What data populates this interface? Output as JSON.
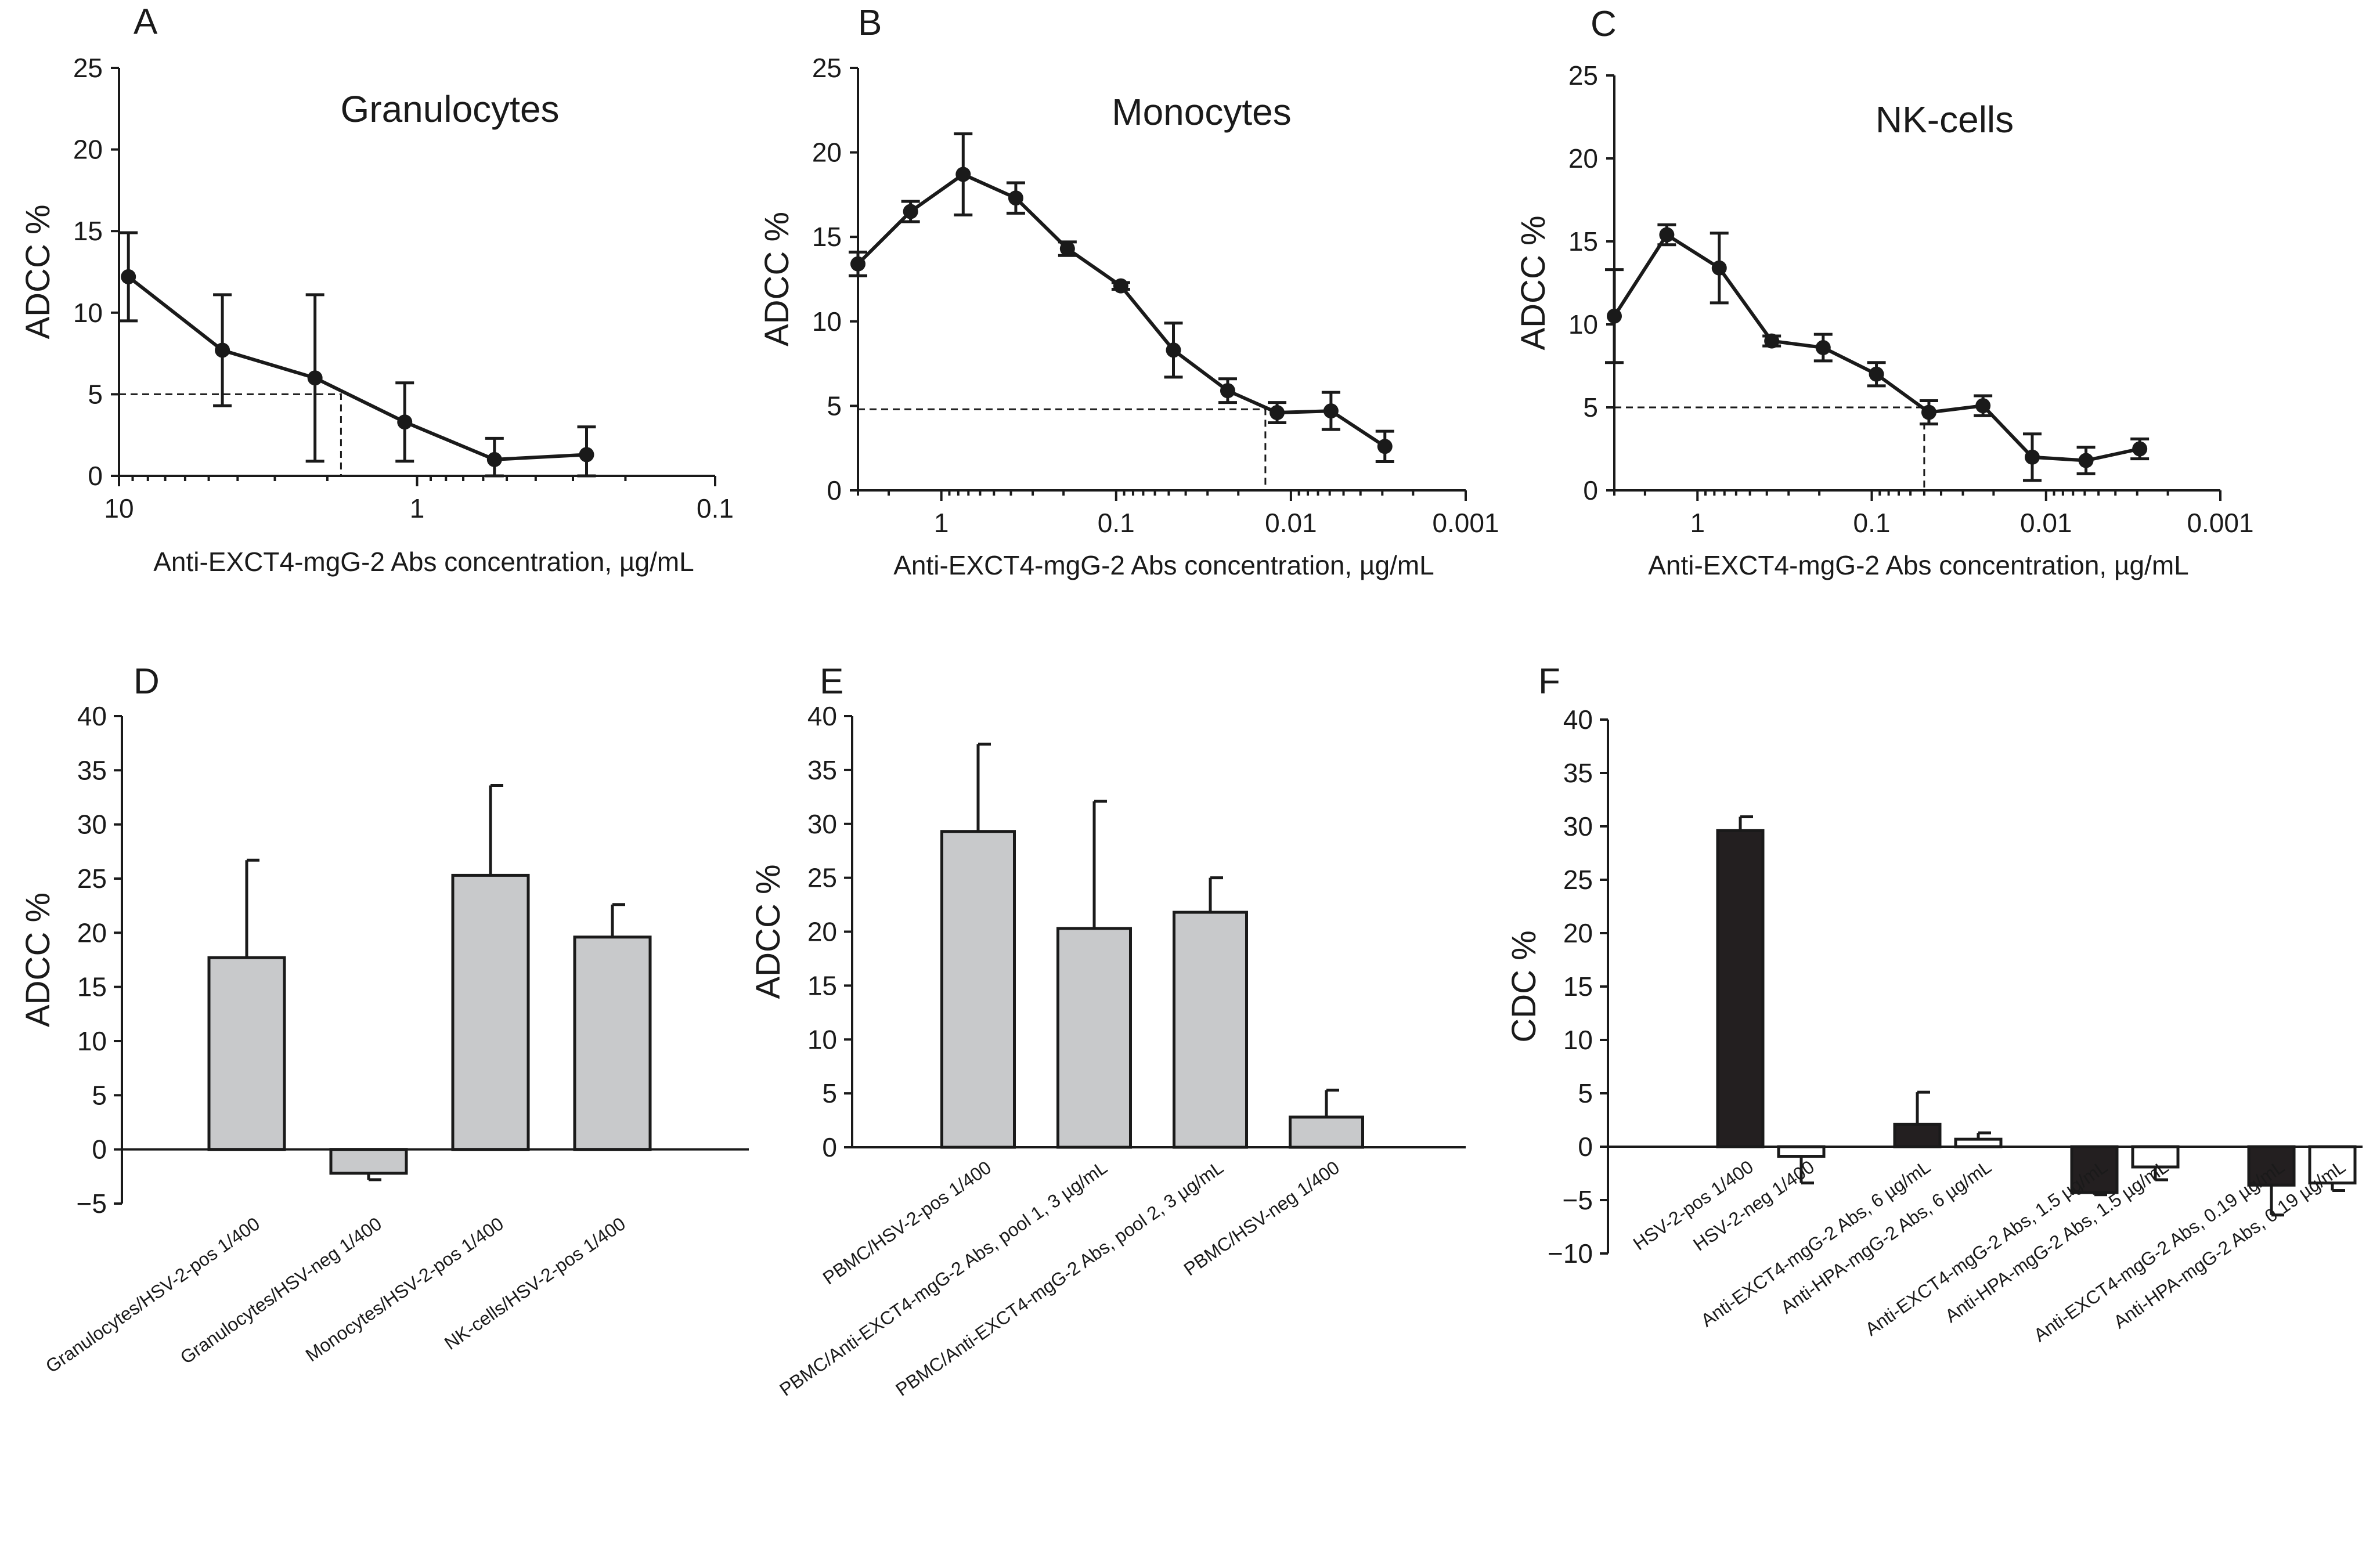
{
  "chart_data": [
    {
      "id": "A",
      "panel_label": "A",
      "type": "line",
      "title": "Granulocytes",
      "ylabel": "ADCC %",
      "xlabel": "Anti-EXCT4-mgG-2 Abs concentration, µg/mL",
      "xscale": "log-reversed",
      "xlim": [
        10,
        0.1
      ],
      "ylim": [
        0,
        25
      ],
      "xticks": [
        10,
        1,
        0.1
      ],
      "xtick_labels": [
        "10",
        "1",
        "0.1"
      ],
      "yticks": [
        0,
        5,
        10,
        15,
        20,
        25
      ],
      "ytick_labels": [
        "0",
        "5",
        "10",
        "15",
        "20",
        "25"
      ],
      "points": [
        {
          "x": 9.3,
          "y": 12.2,
          "err": 2.7
        },
        {
          "x": 4.5,
          "y": 7.7,
          "err": 3.4
        },
        {
          "x": 2.2,
          "y": 6.0,
          "err": 5.1
        },
        {
          "x": 1.1,
          "y": 3.3,
          "err": 2.4
        },
        {
          "x": 0.55,
          "y": 1.0,
          "err": 1.3
        },
        {
          "x": 0.27,
          "y": 1.3,
          "err": 1.7
        }
      ],
      "reference": {
        "y": 5,
        "x": 1.8
      }
    },
    {
      "id": "B",
      "panel_label": "B",
      "type": "line",
      "title": "Monocytes",
      "ylabel": "ADCC %",
      "xlabel": "Anti-EXCT4-mgG-2 Abs concentration, µg/mL",
      "xscale": "log-reversed",
      "xlim": [
        3,
        0.001
      ],
      "ylim": [
        0,
        25
      ],
      "xticks": [
        1,
        0.1,
        0.01,
        0.001
      ],
      "xtick_labels": [
        "1",
        "0.1",
        "0.01",
        "0.001"
      ],
      "yticks": [
        0,
        5,
        10,
        15,
        20,
        25
      ],
      "ytick_labels": [
        "0",
        "5",
        "10",
        "15",
        "20",
        "25"
      ],
      "points": [
        {
          "x": 3.0,
          "y": 13.4,
          "err": 0.7
        },
        {
          "x": 1.5,
          "y": 16.5,
          "err": 0.6
        },
        {
          "x": 0.75,
          "y": 18.7,
          "err": 2.4
        },
        {
          "x": 0.375,
          "y": 17.3,
          "err": 0.9
        },
        {
          "x": 0.19,
          "y": 14.3,
          "err": 0.4
        },
        {
          "x": 0.094,
          "y": 12.1,
          "err": 0.2
        },
        {
          "x": 0.047,
          "y": 8.3,
          "err": 1.6
        },
        {
          "x": 0.023,
          "y": 5.9,
          "err": 0.7
        },
        {
          "x": 0.012,
          "y": 4.6,
          "err": 0.6
        },
        {
          "x": 0.0059,
          "y": 4.7,
          "err": 1.1
        },
        {
          "x": 0.0029,
          "y": 2.6,
          "err": 0.9
        }
      ],
      "reference": {
        "y": 4.8,
        "x": 0.014
      }
    },
    {
      "id": "C",
      "panel_label": "C",
      "type": "line",
      "title": "NK-cells",
      "ylabel": "ADCC %",
      "xlabel": "Anti-EXCT4-mgG-2 Abs concentration, µg/mL",
      "xscale": "log-reversed",
      "xlim": [
        3,
        0.001
      ],
      "ylim": [
        0,
        25
      ],
      "xticks": [
        1,
        0.1,
        0.01,
        0.001
      ],
      "xtick_labels": [
        "1",
        "0.1",
        "0.01",
        "0.001"
      ],
      "yticks": [
        0,
        5,
        10,
        15,
        20,
        25
      ],
      "ytick_labels": [
        "0",
        "5",
        "10",
        "15",
        "20",
        "25"
      ],
      "points": [
        {
          "x": 3.0,
          "y": 10.5,
          "err": 2.8
        },
        {
          "x": 1.5,
          "y": 15.4,
          "err": 0.6
        },
        {
          "x": 0.75,
          "y": 13.4,
          "err": 2.1
        },
        {
          "x": 0.375,
          "y": 9.0,
          "err": 0.3
        },
        {
          "x": 0.19,
          "y": 8.6,
          "err": 0.8
        },
        {
          "x": 0.094,
          "y": 7.0,
          "err": 0.7
        },
        {
          "x": 0.047,
          "y": 4.7,
          "err": 0.7
        },
        {
          "x": 0.023,
          "y": 5.1,
          "err": 0.6
        },
        {
          "x": 0.012,
          "y": 2.0,
          "err": 1.4
        },
        {
          "x": 0.0059,
          "y": 1.8,
          "err": 0.8
        },
        {
          "x": 0.0029,
          "y": 2.5,
          "err": 0.6
        }
      ],
      "reference": {
        "y": 5,
        "x": 0.05
      }
    },
    {
      "id": "D",
      "panel_label": "D",
      "type": "bar",
      "ylabel": "ADCC %",
      "ylim": [
        -5,
        40
      ],
      "yticks": [
        -5,
        0,
        5,
        10,
        15,
        20,
        25,
        30,
        35,
        40
      ],
      "ytick_labels": [
        "−5",
        "0",
        "5",
        "10",
        "15",
        "20",
        "25",
        "30",
        "35",
        "40"
      ],
      "categories": [
        "Granulocytes/HSV-2-pos 1/400",
        "Granulocytes/HSV-neg 1/400",
        "Monocytes/HSV-2-pos 1/400",
        "NK-cells/HSV-2-pos 1/400"
      ],
      "values": [
        17.7,
        -2.2,
        25.3,
        19.6
      ],
      "errors": [
        9.0,
        0.6,
        8.3,
        3.0
      ],
      "colors": [
        "#c8c9cb",
        "#c8c9cb",
        "#c8c9cb",
        "#c8c9cb"
      ]
    },
    {
      "id": "E",
      "panel_label": "E",
      "type": "bar",
      "ylabel": "ADCC %",
      "ylim": [
        0,
        40
      ],
      "yticks": [
        0,
        5,
        10,
        15,
        20,
        25,
        30,
        35,
        40
      ],
      "ytick_labels": [
        "0",
        "5",
        "10",
        "15",
        "20",
        "25",
        "30",
        "35",
        "40"
      ],
      "categories": [
        "PBMC/HSV-2-pos 1/400",
        "PBMC/Anti-EXCT4-mgG-2 Abs, pool 1, 3 µg/mL",
        "PBMC/Anti-EXCT4-mgG-2 Abs, pool 2, 3 µg/mL",
        "PBMC/HSV-neg 1/400"
      ],
      "values": [
        29.3,
        20.3,
        21.8,
        2.8
      ],
      "errors": [
        8.1,
        11.8,
        3.2,
        2.5
      ],
      "colors": [
        "#c8c9cb",
        "#c8c9cb",
        "#c8c9cb",
        "#c8c9cb"
      ]
    },
    {
      "id": "F",
      "panel_label": "F",
      "type": "bar",
      "ylabel": "CDC %",
      "ylim": [
        -10,
        40
      ],
      "yticks": [
        -10,
        -5,
        0,
        5,
        10,
        15,
        20,
        25,
        30,
        35,
        40
      ],
      "ytick_labels": [
        "−10",
        "−5",
        "0",
        "5",
        "10",
        "15",
        "20",
        "25",
        "30",
        "35",
        "40"
      ],
      "categories": [
        "HSV-2-pos 1/400",
        "HSV-2-neg 1/400",
        "Anti-EXCT4-mgG-2 Abs, 6 µg/mL",
        "Anti-HPA-mgG-2 Abs, 6 µg/mL",
        "Anti-EXCT4-mgG-2 Abs, 1.5 µg/mL",
        "Anti-HPA-mgG-2 Abs, 1.5 µg/mL",
        "Anti-EXCT4-mgG-2 Abs, 0.19 µg/mL",
        "Anti-HPA-mgG-2 Abs, 0.19 µg/mL"
      ],
      "values": [
        29.6,
        -0.9,
        2.1,
        0.7,
        -4.3,
        -1.9,
        -3.6,
        -3.4
      ],
      "errors": [
        1.3,
        2.5,
        3.0,
        0.6,
        0.2,
        1.2,
        2.8,
        0.7
      ],
      "colors": [
        "#231f20",
        "#ffffff",
        "#231f20",
        "#ffffff",
        "#231f20",
        "#ffffff",
        "#231f20",
        "#ffffff"
      ]
    }
  ]
}
